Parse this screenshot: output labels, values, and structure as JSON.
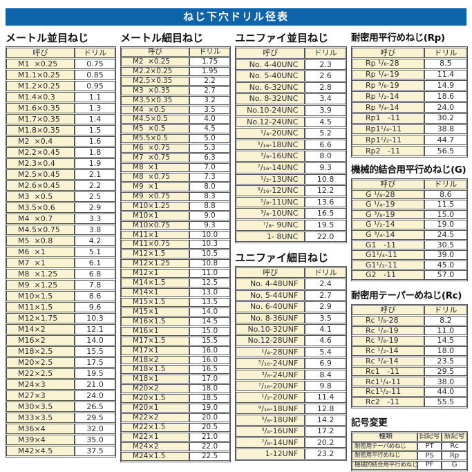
{
  "title": "ねじ下穴ドリル径表",
  "colors": {
    "title_bar": "#0f63a8",
    "cell_bg": "#f9f3d4",
    "border": "#54565b"
  },
  "table_headers": {
    "name": "呼び",
    "drill": "ドリル"
  },
  "page_mark": "- -",
  "metric_coarse": {
    "title": "メートル並目ねじ",
    "rows": [
      [
        "M1  ×0.25",
        "0.75"
      ],
      [
        "M1.1×0.25",
        "0.85"
      ],
      [
        "M1.2×0.25",
        "0.95"
      ],
      [
        "M1.4×0.3",
        "1.1"
      ],
      [
        "M1.6×0.35",
        "1.3"
      ],
      [
        "M1.7×0.35",
        "1.4"
      ],
      [
        "M1.8×0.35",
        "1.5"
      ],
      [
        "M2  ×0.4",
        "1.6"
      ],
      [
        "M2.2×0.45",
        "1.8"
      ],
      [
        "M2.3×0.4",
        "1.9"
      ],
      [
        "M2.5×0.45",
        "2.1"
      ],
      [
        "M2.6×0.45",
        "2.2"
      ],
      [
        "M3  ×0.5",
        "2.5"
      ],
      [
        "M3.5×0.6",
        "2.9"
      ],
      [
        "M4  ×0.7",
        "3.3"
      ],
      [
        "M4.5×0.75",
        "3.8"
      ],
      [
        "M5  ×0.8",
        "4.2"
      ],
      [
        "M6  ×1",
        "5.1"
      ],
      [
        "M7  ×1",
        "6.1"
      ],
      [
        "M8  ×1.25",
        "6.8"
      ],
      [
        "M9  ×1.25",
        "7.8"
      ],
      [
        "M10×1.5",
        "8.6"
      ],
      [
        "M11×1.5",
        "9.6"
      ],
      [
        "M12×1.75",
        "10.3"
      ],
      [
        "M14×2",
        "12.1"
      ],
      [
        "M16×2",
        "14.0"
      ],
      [
        "M18×2.5",
        "15.5"
      ],
      [
        "M20×2.5",
        "17.5"
      ],
      [
        "M22×2.5",
        "19.5"
      ],
      [
        "M24×3",
        "21.0"
      ],
      [
        "M27×3",
        "24.0"
      ],
      [
        "M30×3.5",
        "26.5"
      ],
      [
        "M33×3.5",
        "29.5"
      ],
      [
        "M36×4",
        "32.0"
      ],
      [
        "M39×4",
        "35.0"
      ],
      [
        "M42×4.5",
        "37.5"
      ]
    ]
  },
  "metric_fine": {
    "title": "メートル細目ねじ",
    "rows": [
      [
        "M2  ×0.25",
        "1.75"
      ],
      [
        "M2.2×0.25",
        "1.95"
      ],
      [
        "M2.5×0.35",
        "2.2"
      ],
      [
        "M3  ×0.35",
        "2.7"
      ],
      [
        "M3.5×0.35",
        "3.2"
      ],
      [
        "M4  ×0.5",
        "3.5"
      ],
      [
        "M4.5×0.5",
        "4.0"
      ],
      [
        "M5  ×0.5",
        "4.5"
      ],
      [
        "M5.5×0.5",
        "5.0"
      ],
      [
        "M6  ×0.75",
        "5.3"
      ],
      [
        "M7  ×0.75",
        "6.3"
      ],
      [
        "M8  ×1",
        "7.0"
      ],
      [
        "M8  ×0.75",
        "7.3"
      ],
      [
        "M9  ×1",
        "8.0"
      ],
      [
        "M9  ×0.75",
        "8.3"
      ],
      [
        "M10×1.25",
        "8.8"
      ],
      [
        "M10×1",
        "9.0"
      ],
      [
        "M10×0.75",
        "9.3"
      ],
      [
        "M11×1",
        "10.0"
      ],
      [
        "M11×0.75",
        "10.3"
      ],
      [
        "M12×1.5",
        "10.5"
      ],
      [
        "M12×1.25",
        "10.8"
      ],
      [
        "M12×1",
        "11.0"
      ],
      [
        "M14×1.5",
        "12.5"
      ],
      [
        "M14×1",
        "13.0"
      ],
      [
        "M15×1.5",
        "13.5"
      ],
      [
        "M15×1",
        "14.0"
      ],
      [
        "M16×1.5",
        "14.5"
      ],
      [
        "M16×1",
        "15.0"
      ],
      [
        "M17×1.5",
        "15.5"
      ],
      [
        "M17×1",
        "16.0"
      ],
      [
        "M18×2",
        "16.0"
      ],
      [
        "M18×1.5",
        "16.5"
      ],
      [
        "M18×1",
        "17.0"
      ],
      [
        "M20×2",
        "18.0"
      ],
      [
        "M20×1.5",
        "18.5"
      ],
      [
        "M20×1",
        "19.0"
      ],
      [
        "M22×2",
        "20.0"
      ],
      [
        "M22×1.5",
        "20.5"
      ],
      [
        "M22×1",
        "21.0"
      ],
      [
        "M24×2",
        "22.0"
      ],
      [
        "M24×1.5",
        "22.5"
      ]
    ]
  },
  "unified_coarse": {
    "title": "ユニファイ並目ねじ",
    "rows": [
      [
        "No. 4-40UNC",
        "2.3"
      ],
      [
        "No. 5-40UNC",
        "2.6"
      ],
      [
        "No. 6-32UNC",
        "2.8"
      ],
      [
        "No. 8-32UNC",
        "3.4"
      ],
      [
        "No.10-24UNC",
        "3.9"
      ],
      [
        "No.12-24UNC",
        "4.5"
      ],
      [
        "¹/₄-20UNC",
        "5.2"
      ],
      [
        "⁵/₁₆-18UNC",
        "6.6"
      ],
      [
        "³/₈-16UNC",
        "8.0"
      ],
      [
        "⁷/₁₆-14UNC",
        "9.3"
      ],
      [
        "¹/₂-13UNC",
        "10.8"
      ],
      [
        "⁹/₁₆-12UNC",
        "12.2"
      ],
      [
        "⁵/₈-11UNC",
        "13.6"
      ],
      [
        "³/₄-10UNC",
        "16.5"
      ],
      [
        "⁷/₈- 9UNC",
        "19.5"
      ],
      [
        "1- 8UNC",
        "22.0"
      ]
    ]
  },
  "unified_fine": {
    "title": "ユニファイ細目ねじ",
    "rows": [
      [
        "No. 4-48UNF",
        "2.4"
      ],
      [
        "No. 5-44UNF",
        "2.7"
      ],
      [
        "No. 6-40UNF",
        "2.9"
      ],
      [
        "No. 8-36UNF",
        "3.5"
      ],
      [
        "No.10-32UNF",
        "4.1"
      ],
      [
        "No.12-28UNF",
        "4.6"
      ],
      [
        "¹/₄-28UNF",
        "5.4"
      ],
      [
        "⁵/₁₆-24UNF",
        "6.9"
      ],
      [
        "³/₈-24UNF",
        "8.4"
      ],
      [
        "⁷/₁₆-20UNF",
        "9.8"
      ],
      [
        "¹/₂-20UNF",
        "11.4"
      ],
      [
        "⁹/₁₆-18UNF",
        "12.8"
      ],
      [
        "⁵/₈-18UNF",
        "14.2"
      ],
      [
        "³/₄-16UNF",
        "17.2"
      ],
      [
        "⁷/₈-14UNF",
        "20.2"
      ],
      [
        "1-12UNF",
        "23.2"
      ]
    ]
  },
  "rp": {
    "title": "耐密用平行めねじ(Rp)",
    "rows": [
      [
        "Rp ¹/₈-28",
        "8.5"
      ],
      [
        "Rp ¹/₄-19",
        "11.4"
      ],
      [
        "Rp ³/₈-19",
        "14.9"
      ],
      [
        "Rp ¹/₂-14",
        "18.6"
      ],
      [
        "Rp ³/₄-14",
        "24.0"
      ],
      [
        "Rp1   -11",
        "30.2"
      ],
      [
        "Rp1¹/₄-11",
        "38.8"
      ],
      [
        "Rp1¹/₂-11",
        "44.7"
      ],
      [
        "Rp2   -11",
        "56.5"
      ]
    ]
  },
  "g": {
    "title": "機械的結合用平行めねじ(G)",
    "rows": [
      [
        "G ¹/₈-28",
        "8.6"
      ],
      [
        "G ¹/₄-19",
        "11.5"
      ],
      [
        "G ³/₈-19",
        "15.0"
      ],
      [
        "G ¹/₂-14",
        "19.0"
      ],
      [
        "G ³/₄-14",
        "24.5"
      ],
      [
        "G1   -11",
        "30.5"
      ],
      [
        "G1¹/₄-11",
        "39.0"
      ],
      [
        "G1¹/₂-11",
        "45.0"
      ],
      [
        "G2   -11",
        "57.0"
      ]
    ]
  },
  "rc": {
    "title": "耐密用テーパーめねじ(Rc)",
    "rows": [
      [
        "Rc ¹/₈-28",
        "8.2"
      ],
      [
        "Rc ¹/₄-19",
        "11.0"
      ],
      [
        "Rc ³/₈-19",
        "14.5"
      ],
      [
        "Rc ¹/₂-14",
        "18.0"
      ],
      [
        "Rc ³/₄-14",
        "23.5"
      ],
      [
        "Rc1   -11",
        "29.5"
      ],
      [
        "Rc1¹/₄-11",
        "38.0"
      ],
      [
        "Rc1¹/₂-11",
        "44.0"
      ],
      [
        "Rc2   -11",
        "55.5"
      ]
    ]
  },
  "symbol_change": {
    "title": "記号変更",
    "headers": [
      "種類",
      "旧記号",
      "新記号"
    ],
    "rows": [
      [
        "耐密用テーパめねじ",
        "PT",
        "Rc"
      ],
      [
        "耐密用平行めねじ",
        "PS",
        "Rp"
      ],
      [
        "機械的結合用平行めねじ",
        "PF",
        "G"
      ]
    ]
  }
}
